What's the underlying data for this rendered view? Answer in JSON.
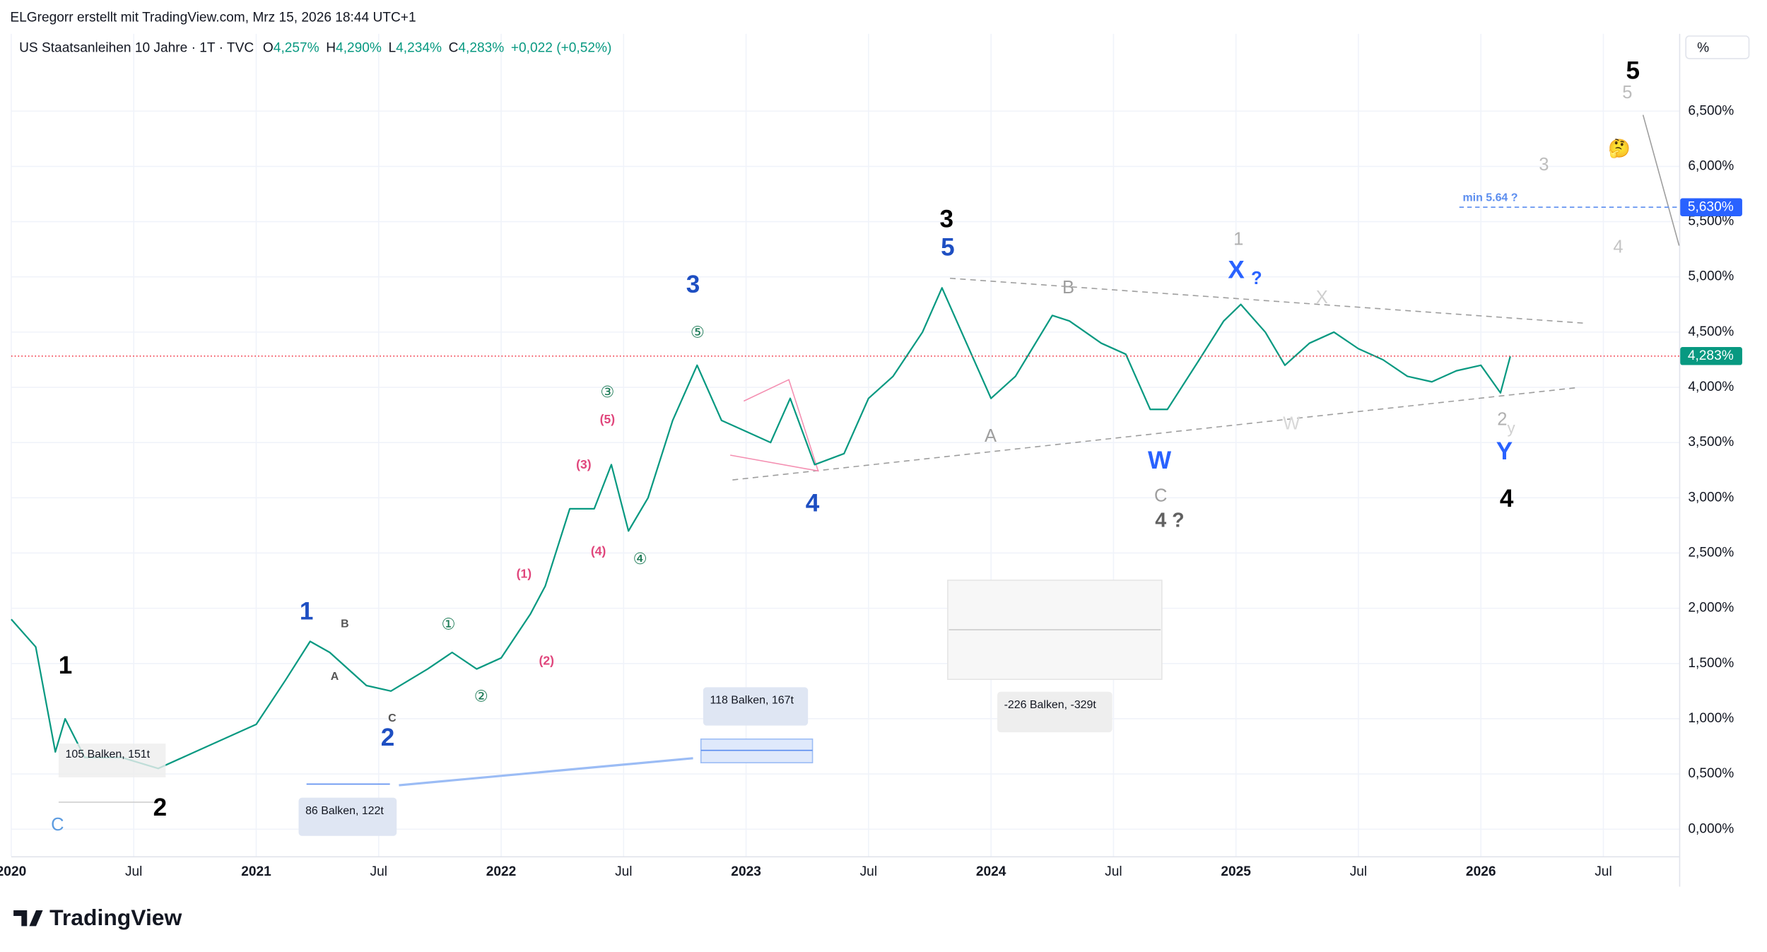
{
  "header": {
    "credit": "ELGregorr erstellt mit TradingView.com, Mrz 15, 2026 18:44 UTC+1",
    "brand": "TradingView"
  },
  "chart_data": {
    "type": "line",
    "symbol": "US Staatsanleihen 10 Jahre · 1T · TVC",
    "ohlc": [
      {
        "key": "O",
        "text": "4,257%"
      },
      {
        "key": "H",
        "text": "4,290%"
      },
      {
        "key": "L",
        "text": "4,234%"
      },
      {
        "key": "C",
        "text": "4,283%"
      }
    ],
    "change": "+0,022 (+0,52%)",
    "unit": "%",
    "series": [
      {
        "name": "US Staatsanleihen 10 Jahre",
        "color": "#089981",
        "x": [
          2020.0,
          2020.1,
          2020.18,
          2020.22,
          2020.3,
          2020.45,
          2020.6,
          2020.75,
          2020.9,
          2021.0,
          2021.12,
          2021.22,
          2021.3,
          2021.45,
          2021.55,
          2021.7,
          2021.8,
          2021.9,
          2022.0,
          2022.12,
          2022.18,
          2022.28,
          2022.38,
          2022.45,
          2022.52,
          2022.6,
          2022.7,
          2022.8,
          2022.9,
          2023.0,
          2023.1,
          2023.18,
          2023.28,
          2023.4,
          2023.5,
          2023.6,
          2023.72,
          2023.8,
          2023.88,
          2024.0,
          2024.1,
          2024.25,
          2024.32,
          2024.45,
          2024.55,
          2024.65,
          2024.72,
          2024.85,
          2024.95,
          2025.02,
          2025.12,
          2025.2,
          2025.3,
          2025.4,
          2025.5,
          2025.6,
          2025.7,
          2025.8,
          2025.9,
          2026.0,
          2026.08,
          2026.12
        ],
        "values": [
          1.9,
          1.65,
          0.7,
          1.0,
          0.65,
          0.65,
          0.55,
          0.7,
          0.85,
          0.95,
          1.35,
          1.7,
          1.6,
          1.3,
          1.25,
          1.45,
          1.6,
          1.45,
          1.55,
          1.95,
          2.2,
          2.9,
          2.9,
          3.3,
          2.7,
          3.0,
          3.7,
          4.2,
          3.7,
          3.6,
          3.5,
          3.9,
          3.3,
          3.4,
          3.9,
          4.1,
          4.5,
          4.9,
          4.5,
          3.9,
          4.1,
          4.65,
          4.6,
          4.4,
          4.3,
          3.8,
          3.8,
          4.25,
          4.6,
          4.75,
          4.5,
          4.2,
          4.4,
          4.5,
          4.35,
          4.25,
          4.1,
          4.05,
          4.15,
          4.2,
          3.95,
          4.28
        ]
      }
    ],
    "last_price": {
      "value": 4.283,
      "label": "4,283%"
    },
    "target": {
      "value": 5.63,
      "label": "5,630%",
      "note": "min 5.64 ?"
    },
    "xlim": [
      2020.0,
      2026.8
    ],
    "xticks": [
      {
        "value": 2020.0,
        "label": "2020"
      },
      {
        "value": 2020.5,
        "label": "Jul"
      },
      {
        "value": 2021.0,
        "label": "2021"
      },
      {
        "value": 2021.5,
        "label": "Jul"
      },
      {
        "value": 2022.0,
        "label": "2022"
      },
      {
        "value": 2022.5,
        "label": "Jul"
      },
      {
        "value": 2023.0,
        "label": "2023"
      },
      {
        "value": 2023.5,
        "label": "Jul"
      },
      {
        "value": 2024.0,
        "label": "2024"
      },
      {
        "value": 2024.5,
        "label": "Jul"
      },
      {
        "value": 2025.0,
        "label": "2025"
      },
      {
        "value": 2025.5,
        "label": "Jul"
      },
      {
        "value": 2026.0,
        "label": "2026"
      },
      {
        "value": 2026.5,
        "label": "Jul"
      }
    ],
    "ylim": [
      -0.52,
      7.2
    ],
    "yticks": [
      {
        "value": 0,
        "label": "0,000%"
      },
      {
        "value": 0.5,
        "label": "0,500%"
      },
      {
        "value": 1,
        "label": "1,000%"
      },
      {
        "value": 1.5,
        "label": "1,500%"
      },
      {
        "value": 2,
        "label": "2,000%"
      },
      {
        "value": 2.5,
        "label": "2,500%"
      },
      {
        "value": 3,
        "label": "3,000%"
      },
      {
        "value": 3.5,
        "label": "3,500%"
      },
      {
        "value": 4,
        "label": "4,000%"
      },
      {
        "value": 4.5,
        "label": "4,500%"
      },
      {
        "value": 5,
        "label": "5,000%"
      },
      {
        "value": 5.5,
        "label": "5,500%"
      },
      {
        "value": 6,
        "label": "6,000%"
      },
      {
        "value": 6.5,
        "label": "6,500%"
      }
    ],
    "grid": true,
    "measurements": [
      "105 Balken, 151t",
      "86 Balken, 122t",
      "118 Balken, 167t",
      "-226 Balken, -329t"
    ],
    "annotations": [
      {
        "text": "1",
        "color": "#000000"
      },
      {
        "text": "2",
        "color": "#000000"
      },
      {
        "text": "3",
        "color": "#000000"
      },
      {
        "text": "4",
        "color": "#000000"
      },
      {
        "text": "5",
        "color": "#000000"
      },
      {
        "text": "1",
        "color": "#1e4fc2"
      },
      {
        "text": "2",
        "color": "#1e4fc2"
      },
      {
        "text": "3",
        "color": "#1e4fc2"
      },
      {
        "text": "4",
        "color": "#1e4fc2"
      },
      {
        "text": "5",
        "color": "#1e4fc2"
      },
      {
        "text": "W",
        "color": "#2962ff"
      },
      {
        "text": "X",
        "color": "#2962ff"
      },
      {
        "text": "?",
        "color": "#2962ff"
      },
      {
        "text": "Y",
        "color": "#2962ff"
      },
      {
        "text": "A",
        "color": "#9e9e9e"
      },
      {
        "text": "B",
        "color": "#9e9e9e"
      },
      {
        "text": "C",
        "color": "#9e9e9e"
      },
      {
        "text": "4 ?",
        "color": "#616161"
      },
      {
        "text": "1",
        "color": "#b0b0b0"
      },
      {
        "text": "X",
        "color": "#cfcfcf"
      },
      {
        "text": "W",
        "color": "#d8d8d8"
      },
      {
        "text": "2",
        "color": "#b0b0b0"
      },
      {
        "text": "y",
        "color": "#d0d0d0"
      },
      {
        "text": "5",
        "color": "#bdbdbd"
      },
      {
        "text": "3",
        "color": "#bdbdbd"
      },
      {
        "text": "4",
        "color": "#c4c4c4"
      },
      {
        "text": "B",
        "color": "#555555"
      },
      {
        "text": "A",
        "color": "#555555"
      },
      {
        "text": "C",
        "color": "#555555"
      },
      {
        "text": "C",
        "color": "#5b9be0"
      },
      {
        "text": "①",
        "color": "#1b7a55"
      },
      {
        "text": "②",
        "color": "#1b7a55"
      },
      {
        "text": "③",
        "color": "#1b7a55"
      },
      {
        "text": "④",
        "color": "#1b7a55"
      },
      {
        "text": "⑤",
        "color": "#1b7a55"
      },
      {
        "text": "(1)",
        "color": "#e0457b"
      },
      {
        "text": "(2)",
        "color": "#e0457b"
      },
      {
        "text": "(3)",
        "color": "#e0457b"
      },
      {
        "text": "(4)",
        "color": "#e0457b"
      },
      {
        "text": "(5)",
        "color": "#e0457b"
      },
      {
        "text": "🤔",
        "color": "#e0a020"
      }
    ]
  }
}
